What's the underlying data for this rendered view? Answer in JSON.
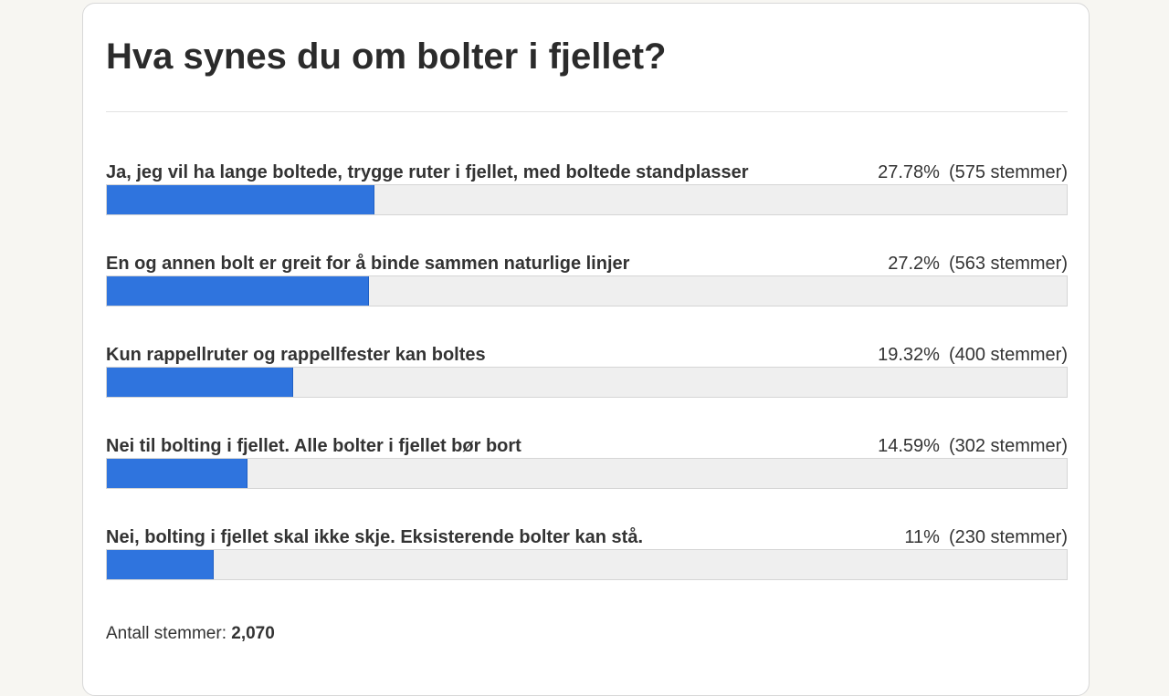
{
  "poll": {
    "title": "Hva synes du om bolter i fjellet?",
    "options": [
      {
        "label": "Ja, jeg vil ha lange boltede, trygge ruter i fjellet, med boltede standplasser",
        "percent_text": "27.78%",
        "votes_text": "(575 stemmer)",
        "percent": 27.78
      },
      {
        "label": "En og annen bolt er greit for å binde sammen naturlige linjer",
        "percent_text": "27.2%",
        "votes_text": "(563 stemmer)",
        "percent": 27.2
      },
      {
        "label": "Kun rappellruter og rappellfester kan boltes",
        "percent_text": "19.32%",
        "votes_text": "(400 stemmer)",
        "percent": 19.32
      },
      {
        "label": "Nei til bolting i fjellet. Alle bolter i fjellet bør bort",
        "percent_text": "14.59%",
        "votes_text": "(302 stemmer)",
        "percent": 14.59
      },
      {
        "label": "Nei, bolting i fjellet skal ikke skje. Eksisterende bolter kan stå.",
        "percent_text": "11%",
        "votes_text": "(230 stemmer)",
        "percent": 11
      }
    ],
    "total_label": "Antall stemmer:",
    "total_value": "2,070",
    "bar_color": "#2f74de"
  }
}
